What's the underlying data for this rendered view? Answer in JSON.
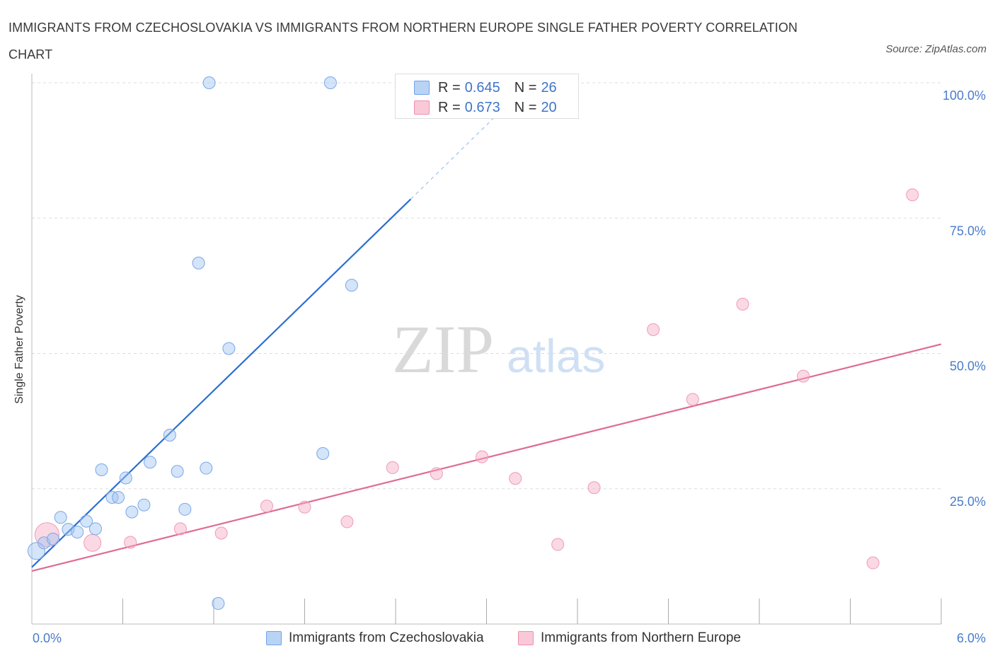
{
  "title": "IMMIGRANTS FROM CZECHOSLOVAKIA VS IMMIGRANTS FROM NORTHERN EUROPE SINGLE FATHER POVERTY CORRELATION CHART",
  "source": "Source: ZipAtlas.com",
  "watermark": {
    "zip": "ZIP",
    "atlas": "atlas"
  },
  "legend": {
    "rows": [
      {
        "r_label": "R =",
        "r_value": "0.645",
        "n_label": "N =",
        "n_value": "26"
      },
      {
        "r_label": "R =",
        "r_value": "0.673",
        "n_label": "N =",
        "n_value": "20"
      }
    ]
  },
  "chart_data": {
    "type": "scatter",
    "xlabel": "",
    "ylabel": "Single Father Poverty",
    "xlim": [
      0,
      6
    ],
    "ylim": [
      0,
      100
    ],
    "x_tick_labels": [
      "0.0%",
      "6.0%"
    ],
    "y_ticks": [
      25,
      50,
      75,
      100
    ],
    "y_tick_labels": [
      "25.0%",
      "50.0%",
      "75.0%",
      "100.0%"
    ],
    "grid": "horizontal dashed",
    "colors": {
      "czechoslovakia": "#6fa3e8",
      "northern_europe": "#f08fae",
      "czech_line": "#2a6fd1",
      "northern_line": "#e06a95"
    },
    "series": [
      {
        "name": "Immigrants from Czechoslovakia",
        "points": [
          [
            0.03,
            13.5
          ],
          [
            0.08,
            15.0
          ],
          [
            0.14,
            15.7
          ],
          [
            0.19,
            19.7
          ],
          [
            0.24,
            17.5
          ],
          [
            0.3,
            17.0
          ],
          [
            0.36,
            19.0
          ],
          [
            0.42,
            17.6
          ],
          [
            0.46,
            28.5
          ],
          [
            0.53,
            23.4
          ],
          [
            0.57,
            23.4
          ],
          [
            0.62,
            27.0
          ],
          [
            0.66,
            20.7
          ],
          [
            0.74,
            22.0
          ],
          [
            0.78,
            29.9
          ],
          [
            0.91,
            34.9
          ],
          [
            0.96,
            28.2
          ],
          [
            1.01,
            21.2
          ],
          [
            1.1,
            66.7
          ],
          [
            1.15,
            28.8
          ],
          [
            1.17,
            100.0
          ],
          [
            1.23,
            3.8
          ],
          [
            1.3,
            50.9
          ],
          [
            1.92,
            31.5
          ],
          [
            1.97,
            100.0
          ],
          [
            2.11,
            62.6
          ]
        ],
        "trend": [
          [
            0.0,
            10.5
          ],
          [
            2.5,
            78.5
          ]
        ],
        "trend_ext": [
          [
            2.5,
            78.5
          ],
          [
            3.15,
            96.3
          ]
        ]
      },
      {
        "name": "Immigrants from Northern Europe",
        "points": [
          [
            0.1,
            16.5
          ],
          [
            0.4,
            15.0
          ],
          [
            0.65,
            15.1
          ],
          [
            0.98,
            17.6
          ],
          [
            1.25,
            16.8
          ],
          [
            1.55,
            21.8
          ],
          [
            1.8,
            21.6
          ],
          [
            2.08,
            18.9
          ],
          [
            2.38,
            28.9
          ],
          [
            2.67,
            27.8
          ],
          [
            2.97,
            30.9
          ],
          [
            3.19,
            26.9
          ],
          [
            3.47,
            14.7
          ],
          [
            3.71,
            25.2
          ],
          [
            4.1,
            54.4
          ],
          [
            4.36,
            41.5
          ],
          [
            4.69,
            59.1
          ],
          [
            5.09,
            45.8
          ],
          [
            5.55,
            11.3
          ],
          [
            5.81,
            79.3
          ]
        ],
        "trend": [
          [
            0.0,
            9.8
          ],
          [
            6.0,
            51.7
          ]
        ]
      }
    ]
  }
}
